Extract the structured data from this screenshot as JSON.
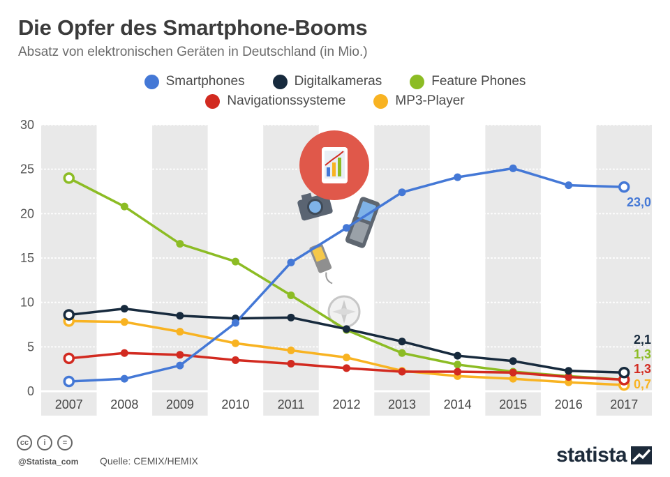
{
  "title": "Die Opfer des Smartphone-Booms",
  "subtitle": "Absatz von elektronischen Geräten in Deutschland (in Mio.)",
  "legend": {
    "row1": [
      {
        "label": "Smartphones",
        "color": "#4478d6"
      },
      {
        "label": "Digitalkameras",
        "color": "#172a3d"
      },
      {
        "label": "Feature Phones",
        "color": "#8cbc24"
      }
    ],
    "row2": [
      {
        "label": "Navigationssysteme",
        "color": "#d22a20"
      },
      {
        "label": "MP3-Player",
        "color": "#f8b322"
      }
    ]
  },
  "chart_data": {
    "type": "line",
    "title": "Die Opfer des Smartphone-Booms",
    "xlabel": "",
    "ylabel": "",
    "categories": [
      "2007",
      "2008",
      "2009",
      "2010",
      "2011",
      "2012",
      "2013",
      "2014",
      "2015",
      "2016",
      "2017"
    ],
    "ylim": [
      0,
      30
    ],
    "yticks": [
      "0",
      "5",
      "10",
      "15",
      "20",
      "25",
      "30"
    ],
    "series": [
      {
        "name": "Smartphones",
        "color": "#4478d6",
        "values": [
          1.1,
          1.4,
          2.9,
          7.7,
          14.5,
          18.4,
          22.4,
          24.1,
          25.1,
          23.2,
          23.0
        ],
        "end_label": "23,0"
      },
      {
        "name": "Digitalkameras",
        "color": "#172a3d",
        "values": [
          8.6,
          9.3,
          8.5,
          8.2,
          8.3,
          7.0,
          5.6,
          4.0,
          3.4,
          2.3,
          2.1
        ],
        "end_label": "2,1"
      },
      {
        "name": "Feature Phones",
        "color": "#8cbc24",
        "values": [
          24.0,
          20.8,
          16.6,
          14.6,
          10.8,
          6.9,
          4.3,
          3.0,
          2.2,
          1.7,
          1.3
        ],
        "end_label": "1,3"
      },
      {
        "name": "Navigationssysteme",
        "color": "#d22a20",
        "values": [
          3.7,
          4.3,
          4.1,
          3.5,
          3.1,
          2.6,
          2.2,
          2.2,
          2.1,
          1.6,
          1.3
        ],
        "end_label": "1,3"
      },
      {
        "name": "MP3-Player",
        "color": "#f8b322",
        "values": [
          7.9,
          7.8,
          6.7,
          5.4,
          4.6,
          3.8,
          2.3,
          1.7,
          1.4,
          1.0,
          0.7
        ],
        "end_label": "0,7"
      }
    ]
  },
  "footer": {
    "handle": "@Statista_com",
    "source": "Quelle: CEMIX/HEMIX",
    "logo": "statista",
    "cc_icons": [
      "cc",
      "i",
      "="
    ]
  }
}
